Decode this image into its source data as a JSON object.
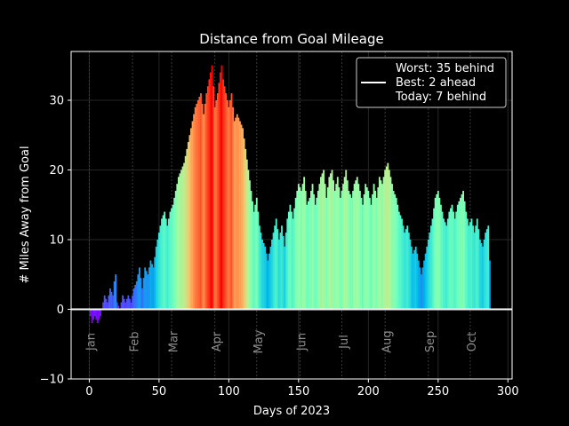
{
  "chart_data": {
    "type": "bar",
    "title": "Distance from Goal Mileage",
    "xlabel": "Days of 2023",
    "ylabel": "# Miles Away from Goal",
    "xlim": [
      -13,
      303
    ],
    "ylim": [
      -10,
      37
    ],
    "x_ticks": [
      0,
      50,
      100,
      150,
      200,
      250,
      300
    ],
    "y_ticks": [
      -10,
      0,
      10,
      20,
      30
    ],
    "grid": true,
    "legend": {
      "placement": "top-right",
      "lines": [
        "Worst: 35 behind",
        "Best: 2 ahead",
        "Today: 7 behind"
      ],
      "line_color": "#ffffff"
    },
    "zero_line_color": "#ffffff",
    "colormap": "rainbow",
    "months": [
      {
        "label": "Jan",
        "day": 4
      },
      {
        "label": "Feb",
        "day": 35
      },
      {
        "label": "Mar",
        "day": 63
      },
      {
        "label": "Apr",
        "day": 94
      },
      {
        "label": "May",
        "day": 124
      },
      {
        "label": "Jun",
        "day": 155
      },
      {
        "label": "Jul",
        "day": 185
      },
      {
        "label": "Aug",
        "day": 216
      },
      {
        "label": "Sep",
        "day": 247
      },
      {
        "label": "Oct",
        "day": 277
      }
    ],
    "month_gridlines": [
      0,
      31,
      59,
      90,
      120,
      151,
      181,
      212,
      243,
      273
    ],
    "series": [
      {
        "keypoints_day_value": [
          [
            1,
            -1
          ],
          [
            2,
            -2
          ],
          [
            4,
            -1
          ],
          [
            6,
            -2
          ],
          [
            8,
            -1
          ],
          [
            9,
            0
          ],
          [
            11,
            2
          ],
          [
            13,
            1
          ],
          [
            15,
            3
          ],
          [
            17,
            2
          ],
          [
            18,
            4
          ],
          [
            19,
            5
          ],
          [
            20,
            1
          ],
          [
            22,
            0
          ],
          [
            24,
            2
          ],
          [
            26,
            1
          ],
          [
            28,
            2
          ],
          [
            30,
            1
          ],
          [
            32,
            3
          ],
          [
            34,
            4
          ],
          [
            36,
            6
          ],
          [
            38,
            3
          ],
          [
            40,
            6
          ],
          [
            42,
            5
          ],
          [
            44,
            7
          ],
          [
            46,
            6
          ],
          [
            48,
            9
          ],
          [
            50,
            11
          ],
          [
            52,
            13
          ],
          [
            54,
            14
          ],
          [
            56,
            12
          ],
          [
            58,
            14
          ],
          [
            60,
            15
          ],
          [
            62,
            17
          ],
          [
            64,
            19
          ],
          [
            66,
            20
          ],
          [
            68,
            21
          ],
          [
            70,
            23
          ],
          [
            72,
            25
          ],
          [
            74,
            27
          ],
          [
            76,
            29
          ],
          [
            78,
            30
          ],
          [
            80,
            31
          ],
          [
            82,
            28
          ],
          [
            84,
            31
          ],
          [
            86,
            33
          ],
          [
            88,
            35
          ],
          [
            90,
            29
          ],
          [
            92,
            31
          ],
          [
            94,
            34
          ],
          [
            95,
            35
          ],
          [
            96,
            33
          ],
          [
            98,
            31
          ],
          [
            100,
            29
          ],
          [
            102,
            31
          ],
          [
            104,
            27
          ],
          [
            106,
            28
          ],
          [
            108,
            27
          ],
          [
            110,
            26
          ],
          [
            112,
            23
          ],
          [
            114,
            20
          ],
          [
            116,
            17
          ],
          [
            118,
            14
          ],
          [
            120,
            16
          ],
          [
            122,
            12
          ],
          [
            124,
            10
          ],
          [
            126,
            9
          ],
          [
            128,
            7
          ],
          [
            130,
            9
          ],
          [
            132,
            11
          ],
          [
            134,
            13
          ],
          [
            136,
            10
          ],
          [
            138,
            12
          ],
          [
            140,
            9
          ],
          [
            142,
            13
          ],
          [
            144,
            15
          ],
          [
            146,
            13
          ],
          [
            148,
            16
          ],
          [
            150,
            18
          ],
          [
            152,
            17
          ],
          [
            154,
            19
          ],
          [
            156,
            15
          ],
          [
            158,
            16
          ],
          [
            160,
            18
          ],
          [
            162,
            15
          ],
          [
            164,
            17
          ],
          [
            166,
            19
          ],
          [
            168,
            20
          ],
          [
            170,
            16
          ],
          [
            172,
            19
          ],
          [
            174,
            20
          ],
          [
            176,
            17
          ],
          [
            178,
            19
          ],
          [
            180,
            16
          ],
          [
            182,
            18
          ],
          [
            184,
            20
          ],
          [
            186,
            17
          ],
          [
            188,
            16
          ],
          [
            190,
            18
          ],
          [
            192,
            19
          ],
          [
            194,
            17
          ],
          [
            196,
            15
          ],
          [
            198,
            18
          ],
          [
            200,
            17
          ],
          [
            202,
            15
          ],
          [
            204,
            18
          ],
          [
            206,
            16
          ],
          [
            208,
            19
          ],
          [
            210,
            18
          ],
          [
            212,
            20
          ],
          [
            214,
            21
          ],
          [
            216,
            19
          ],
          [
            218,
            17
          ],
          [
            220,
            16
          ],
          [
            222,
            14
          ],
          [
            224,
            13
          ],
          [
            226,
            11
          ],
          [
            228,
            12
          ],
          [
            230,
            10
          ],
          [
            232,
            8
          ],
          [
            234,
            9
          ],
          [
            236,
            7
          ],
          [
            238,
            5
          ],
          [
            240,
            7
          ],
          [
            242,
            9
          ],
          [
            244,
            11
          ],
          [
            246,
            13
          ],
          [
            248,
            16
          ],
          [
            250,
            17
          ],
          [
            252,
            15
          ],
          [
            254,
            13
          ],
          [
            256,
            12
          ],
          [
            258,
            14
          ],
          [
            260,
            15
          ],
          [
            262,
            13
          ],
          [
            264,
            15
          ],
          [
            266,
            16
          ],
          [
            268,
            17
          ],
          [
            270,
            14
          ],
          [
            272,
            12
          ],
          [
            274,
            13
          ],
          [
            276,
            11
          ],
          [
            278,
            13
          ],
          [
            280,
            10
          ],
          [
            282,
            9
          ],
          [
            284,
            11
          ],
          [
            286,
            12
          ],
          [
            287,
            7
          ]
        ]
      }
    ]
  }
}
